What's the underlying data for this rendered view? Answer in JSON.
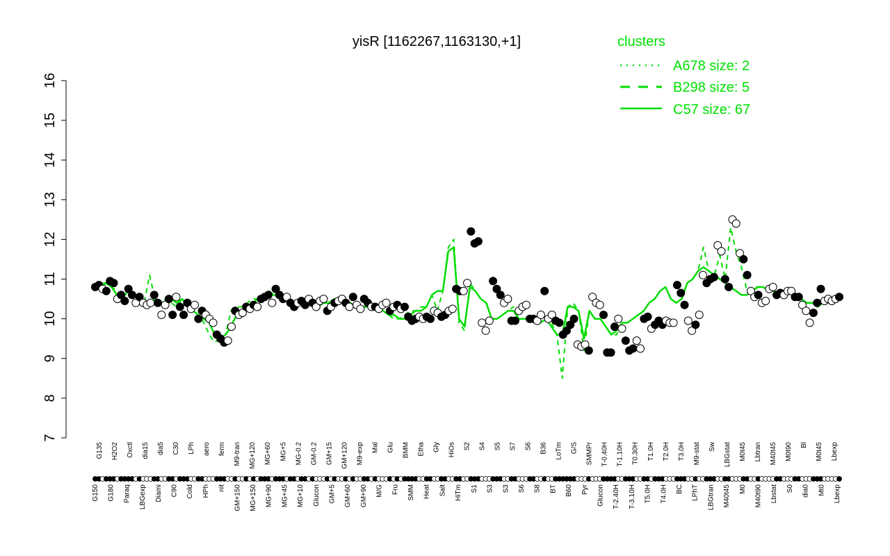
{
  "chart_data": {
    "type": "line",
    "title": "yisR [1162267,1163130,+1]",
    "xlabel": "",
    "ylabel": "",
    "ylim": [
      7,
      16
    ],
    "yticks": [
      7,
      8,
      9,
      10,
      11,
      12,
      13,
      14,
      15,
      16
    ],
    "grid": false,
    "legend": {
      "title": "clusters",
      "placement": "top-right",
      "color": "#00dd00",
      "entries": [
        {
          "label": "A678 size: 2",
          "style": "dotted"
        },
        {
          "label": "B298 size: 5",
          "style": "dashed"
        },
        {
          "label": "C57 size: 67",
          "style": "solid"
        }
      ]
    },
    "x_labels_row1": [
      "G135",
      "H2O2",
      "Oxctl",
      "dia15",
      "dia5",
      "C30",
      "LPh",
      "aero",
      "ferm",
      "M9-tran",
      "MG+120",
      "MG+60",
      "MG+5",
      "MG-0.2",
      "GM-0.2",
      "GM+15",
      "GM+120",
      "M9-exp",
      "Mal",
      "Glu",
      "BMM",
      "Etha",
      "Gly",
      "HiOs",
      "S2",
      "S4",
      "S5",
      "S7",
      "S6",
      "B36",
      "LoTm",
      "G/S",
      "SMMPr",
      "T-0.40H",
      "T-1.10H",
      "T0.30H",
      "T1.0H",
      "T2.0H",
      "T3.0H",
      "M9-stat",
      "Sw",
      "LBGstat",
      "M0t45",
      "Lbtran",
      "M40t45",
      "M0t90",
      "Bl",
      "M0t45",
      "Lbexp"
    ],
    "x_labels_row2": [
      "G150",
      "G180",
      "Paraq",
      "LBGexp",
      "Diami",
      "C90",
      "Cold",
      "HPh",
      "nit",
      "GM+150",
      "MG+150",
      "MG+90",
      "MG+45",
      "MG+10",
      "Glucon",
      "GM+5",
      "GM+60",
      "GM+90",
      "M/G",
      "Fru",
      "SMM",
      "Heat",
      "Salt",
      "HiTm",
      "S1",
      "S3",
      "S3",
      "S6",
      "S8",
      "BT",
      "B60",
      "Pyr",
      "Glucon",
      "T-2.40H",
      "T-3.10H",
      "T5.0H",
      "T4.0H",
      "BC",
      "LPhT",
      "LBGtran",
      "M40t45",
      "M0",
      "M40t90",
      "Lbstat",
      "S0",
      "dia0",
      "Mt0",
      "Lbexp"
    ],
    "series": [
      {
        "values": [
          10.8,
          10.8,
          10.9,
          10.8,
          10.6,
          10.5,
          10.7,
          10.6,
          10.5,
          10.4,
          10.4,
          10.5,
          10.4,
          10.3,
          10.5,
          10.4,
          10.5,
          10.3,
          10.2,
          10.1,
          10.0,
          9.9,
          9.6,
          9.5,
          9.6,
          9.8,
          10.1,
          10.2,
          10.3,
          10.4,
          10.5,
          10.5,
          10.6,
          10.6,
          10.5,
          10.5,
          10.4,
          10.4,
          10.4,
          10.4,
          10.4,
          10.3,
          10.4,
          10.4,
          10.5,
          10.4,
          10.4,
          10.4,
          10.3,
          10.3,
          10.3,
          10.3,
          10.3,
          10.2,
          10.1,
          10.1,
          10.0,
          10.0,
          10.1,
          10.2,
          10.2,
          10.3,
          10.6,
          10.7,
          10.7,
          11.7,
          11.8,
          10.0,
          9.8,
          10.8,
          10.7,
          10.5,
          10.4,
          10.0,
          10.0,
          10.1,
          10.2,
          10.2,
          10.0,
          10.0,
          10.0,
          10.0,
          9.9,
          10.0,
          9.8,
          9.6,
          9.6,
          10.3,
          10.3,
          10.2,
          9.5,
          10.2,
          10.0,
          10.0,
          9.8,
          9.6,
          9.7,
          9.9,
          9.9,
          10.0,
          10.1,
          10.2,
          10.4,
          10.5,
          10.7,
          10.8,
          10.5,
          10.4,
          10.5,
          10.9,
          11.0,
          11.2,
          11.3,
          11.2,
          11.1,
          11.0,
          10.9,
          10.8,
          10.7,
          10.6,
          10.6,
          10.7,
          10.8,
          10.8,
          10.7,
          10.7,
          10.6,
          10.7,
          10.7,
          10.6,
          10.5,
          10.4,
          10.4,
          10.3,
          10.4,
          10.4,
          10.5,
          10.5
        ]
      },
      {
        "style": "dashed",
        "values": [
          10.8,
          10.9,
          10.9,
          10.8,
          10.7,
          10.5,
          10.8,
          10.6,
          10.5,
          10.4,
          11.1,
          10.5,
          10.4,
          10.5,
          10.4,
          10.3,
          10.5,
          10.3,
          10.2,
          10.1,
          9.9,
          9.6,
          9.4,
          9.5,
          9.6,
          10.2,
          10.3,
          10.3,
          10.4,
          10.5,
          10.5,
          10.6,
          10.7,
          10.6,
          10.5,
          10.5,
          10.4,
          10.4,
          10.5,
          10.4,
          10.4,
          10.3,
          10.4,
          10.4,
          10.5,
          10.4,
          10.4,
          10.4,
          10.3,
          10.3,
          10.3,
          10.3,
          10.3,
          10.2,
          10.1,
          10.0,
          10.0,
          10.1,
          10.2,
          10.2,
          10.3,
          10.3,
          10.6,
          10.2,
          10.7,
          11.8,
          12.0,
          9.9,
          9.7,
          10.9,
          10.7,
          10.5,
          10.4,
          10.0,
          10.0,
          10.1,
          10.2,
          10.3,
          10.0,
          10.0,
          10.0,
          10.0,
          9.9,
          10.0,
          9.9,
          9.6,
          8.5,
          10.3,
          10.4,
          10.2,
          9.2,
          10.2,
          10.0,
          10.0,
          9.8,
          9.6,
          9.6,
          9.9,
          9.9,
          10.0,
          10.1,
          10.2,
          10.4,
          10.5,
          10.7,
          10.8,
          10.5,
          10.4,
          10.5,
          10.9,
          11.0,
          11.2,
          11.8,
          11.2,
          11.1,
          11.6,
          11.0,
          12.3,
          11.7,
          11.3,
          10.7,
          10.8,
          10.8,
          10.8,
          10.7,
          10.7,
          10.6,
          10.7,
          10.7,
          10.6,
          10.5,
          10.4,
          10.4,
          10.3,
          10.4,
          10.4,
          10.5,
          10.5
        ]
      },
      {
        "style": "dotted",
        "values": [
          10.8,
          10.8,
          10.9,
          10.8,
          10.6,
          10.5,
          10.7,
          10.6,
          10.5,
          10.4,
          10.4,
          10.5,
          10.4,
          10.3,
          10.5,
          10.4,
          10.5,
          10.3,
          10.2,
          10.1,
          10.0,
          9.9,
          9.6,
          9.5,
          9.6,
          9.8,
          10.1,
          10.2,
          10.3,
          10.4,
          10.5,
          10.5,
          10.6,
          10.6,
          10.5,
          10.5,
          10.4,
          10.4,
          10.4,
          10.4,
          10.4,
          10.3,
          10.4,
          10.4,
          10.5,
          10.4,
          10.4,
          10.4,
          10.3,
          10.3,
          10.3,
          10.3,
          10.3,
          10.2,
          10.1,
          10.1,
          10.0,
          10.0,
          10.1,
          10.2,
          10.2,
          10.3,
          10.6,
          10.7,
          10.7,
          11.7,
          11.8,
          10.0,
          9.8,
          10.8,
          10.7,
          10.5,
          10.4,
          10.0,
          10.0,
          10.1,
          10.2,
          10.2,
          10.0,
          10.0,
          10.0,
          10.0,
          9.9,
          10.0,
          9.8,
          9.6,
          9.6,
          10.3,
          10.3,
          10.2,
          9.5,
          10.2,
          10.0,
          10.0,
          9.8,
          9.6,
          9.7,
          9.9,
          9.9,
          10.0,
          10.1,
          10.2,
          10.4,
          10.5,
          10.7,
          10.8,
          10.5,
          10.4,
          10.5,
          10.9,
          11.0,
          11.2,
          11.3,
          11.2,
          11.1,
          11.0,
          10.9,
          10.8,
          10.7,
          10.6,
          10.6,
          10.7,
          10.8,
          10.8,
          10.7,
          10.7,
          10.6,
          10.7,
          10.7,
          10.6,
          10.5,
          10.4,
          10.4,
          10.3,
          10.4,
          10.4,
          10.5,
          10.5
        ]
      }
    ],
    "points": [
      {
        "y": 10.8,
        "f": 1
      },
      {
        "y": 10.85,
        "f": 1
      },
      {
        "y": 10.75,
        "f": 0
      },
      {
        "y": 10.7,
        "f": 1
      },
      {
        "y": 10.95,
        "f": 1
      },
      {
        "y": 10.9,
        "f": 1
      },
      {
        "y": 10.5,
        "f": 0
      },
      {
        "y": 10.6,
        "f": 1
      },
      {
        "y": 10.45,
        "f": 1
      },
      {
        "y": 10.75,
        "f": 1
      },
      {
        "y": 10.6,
        "f": 1
      },
      {
        "y": 10.4,
        "f": 0
      },
      {
        "y": 10.55,
        "f": 1
      },
      {
        "y": 10.4,
        "f": 0
      },
      {
        "y": 10.35,
        "f": 0
      },
      {
        "y": 10.4,
        "f": 0
      },
      {
        "y": 10.6,
        "f": 1
      },
      {
        "y": 10.4,
        "f": 1
      },
      {
        "y": 10.1,
        "f": 0
      },
      {
        "y": 10.35,
        "f": 0
      },
      {
        "y": 10.5,
        "f": 1
      },
      {
        "y": 10.1,
        "f": 1
      },
      {
        "y": 10.55,
        "f": 0
      },
      {
        "y": 10.3,
        "f": 1
      },
      {
        "y": 10.1,
        "f": 1
      },
      {
        "y": 10.4,
        "f": 1
      },
      {
        "y": 10.25,
        "f": 0
      },
      {
        "y": 10.35,
        "f": 0
      },
      {
        "y": 10.0,
        "f": 1
      },
      {
        "y": 10.2,
        "f": 1
      },
      {
        "y": 10.1,
        "f": 0
      },
      {
        "y": 10.0,
        "f": 0
      },
      {
        "y": 9.9,
        "f": 0
      },
      {
        "y": 9.6,
        "f": 1
      },
      {
        "y": 9.5,
        "f": 1
      },
      {
        "y": 9.4,
        "f": 1
      },
      {
        "y": 9.45,
        "f": 0
      },
      {
        "y": 9.8,
        "f": 0
      },
      {
        "y": 10.2,
        "f": 1
      },
      {
        "y": 10.1,
        "f": 0
      },
      {
        "y": 10.15,
        "f": 0
      },
      {
        "y": 10.3,
        "f": 1
      },
      {
        "y": 10.25,
        "f": 0
      },
      {
        "y": 10.35,
        "f": 1
      },
      {
        "y": 10.3,
        "f": 0
      },
      {
        "y": 10.5,
        "f": 1
      },
      {
        "y": 10.55,
        "f": 1
      },
      {
        "y": 10.6,
        "f": 1
      },
      {
        "y": 10.4,
        "f": 0
      },
      {
        "y": 10.75,
        "f": 1
      },
      {
        "y": 10.6,
        "f": 1
      },
      {
        "y": 10.5,
        "f": 1
      },
      {
        "y": 10.55,
        "f": 0
      },
      {
        "y": 10.4,
        "f": 1
      },
      {
        "y": 10.3,
        "f": 1
      },
      {
        "y": 10.4,
        "f": 0
      },
      {
        "y": 10.45,
        "f": 1
      },
      {
        "y": 10.35,
        "f": 1
      },
      {
        "y": 10.5,
        "f": 0
      },
      {
        "y": 10.4,
        "f": 1
      },
      {
        "y": 10.3,
        "f": 0
      },
      {
        "y": 10.45,
        "f": 0
      },
      {
        "y": 10.5,
        "f": 0
      },
      {
        "y": 10.2,
        "f": 1
      },
      {
        "y": 10.3,
        "f": 0
      },
      {
        "y": 10.4,
        "f": 1
      },
      {
        "y": 10.45,
        "f": 0
      },
      {
        "y": 10.5,
        "f": 0
      },
      {
        "y": 10.4,
        "f": 1
      },
      {
        "y": 10.3,
        "f": 0
      },
      {
        "y": 10.55,
        "f": 1
      },
      {
        "y": 10.35,
        "f": 0
      },
      {
        "y": 10.25,
        "f": 0
      },
      {
        "y": 10.5,
        "f": 1
      },
      {
        "y": 10.4,
        "f": 1
      },
      {
        "y": 10.3,
        "f": 0
      },
      {
        "y": 10.3,
        "f": 1
      },
      {
        "y": 10.25,
        "f": 0
      },
      {
        "y": 10.35,
        "f": 0
      },
      {
        "y": 10.4,
        "f": 0
      },
      {
        "y": 10.2,
        "f": 1
      },
      {
        "y": 10.3,
        "f": 0
      },
      {
        "y": 10.35,
        "f": 1
      },
      {
        "y": 10.25,
        "f": 0
      },
      {
        "y": 10.3,
        "f": 1
      },
      {
        "y": 10.05,
        "f": 1
      },
      {
        "y": 9.95,
        "f": 1
      },
      {
        "y": 10.0,
        "f": 1
      },
      {
        "y": 10.05,
        "f": 0
      },
      {
        "y": 10.0,
        "f": 0
      },
      {
        "y": 10.05,
        "f": 1
      },
      {
        "y": 10.0,
        "f": 1
      },
      {
        "y": 10.2,
        "f": 0
      },
      {
        "y": 10.15,
        "f": 0
      },
      {
        "y": 10.05,
        "f": 1
      },
      {
        "y": 10.1,
        "f": 1
      },
      {
        "y": 10.2,
        "f": 0
      },
      {
        "y": 10.25,
        "f": 0
      },
      {
        "y": 10.75,
        "f": 1
      },
      {
        "y": 10.7,
        "f": 1
      },
      {
        "y": 10.7,
        "f": 0
      },
      {
        "y": 10.9,
        "f": 0
      },
      {
        "y": 12.2,
        "f": 1
      },
      {
        "y": 11.9,
        "f": 1
      },
      {
        "y": 11.95,
        "f": 1
      },
      {
        "y": 9.9,
        "f": 0
      },
      {
        "y": 9.7,
        "f": 0
      },
      {
        "y": 9.95,
        "f": 0
      },
      {
        "y": 10.95,
        "f": 1
      },
      {
        "y": 10.75,
        "f": 1
      },
      {
        "y": 10.6,
        "f": 1
      },
      {
        "y": 10.4,
        "f": 0
      },
      {
        "y": 10.5,
        "f": 0
      },
      {
        "y": 9.95,
        "f": 1
      },
      {
        "y": 9.95,
        "f": 1
      },
      {
        "y": 10.2,
        "f": 0
      },
      {
        "y": 10.3,
        "f": 0
      },
      {
        "y": 10.35,
        "f": 0
      },
      {
        "y": 10.0,
        "f": 1
      },
      {
        "y": 10.0,
        "f": 1
      },
      {
        "y": 9.95,
        "f": 0
      },
      {
        "y": 10.1,
        "f": 0
      },
      {
        "y": 10.7,
        "f": 1
      },
      {
        "y": 10.0,
        "f": 0
      },
      {
        "y": 10.1,
        "f": 0
      },
      {
        "y": 9.95,
        "f": 1
      },
      {
        "y": 9.9,
        "f": 1
      },
      {
        "y": 9.6,
        "f": 1
      },
      {
        "y": 9.7,
        "f": 1
      },
      {
        "y": 9.85,
        "f": 1
      },
      {
        "y": 10.0,
        "f": 1
      },
      {
        "y": 9.35,
        "f": 0
      },
      {
        "y": 9.3,
        "f": 0
      },
      {
        "y": 9.35,
        "f": 0
      },
      {
        "y": 9.2,
        "f": 1
      },
      {
        "y": 10.55,
        "f": 0
      },
      {
        "y": 10.4,
        "f": 0
      },
      {
        "y": 10.35,
        "f": 0
      },
      {
        "y": 10.1,
        "f": 1
      },
      {
        "y": 9.15,
        "f": 1
      },
      {
        "y": 9.15,
        "f": 1
      },
      {
        "y": 9.8,
        "f": 1
      },
      {
        "y": 10.0,
        "f": 0
      },
      {
        "y": 9.75,
        "f": 0
      },
      {
        "y": 9.45,
        "f": 1
      },
      {
        "y": 9.2,
        "f": 1
      },
      {
        "y": 9.25,
        "f": 1
      },
      {
        "y": 9.45,
        "f": 0
      },
      {
        "y": 9.25,
        "f": 0
      },
      {
        "y": 10.0,
        "f": 1
      },
      {
        "y": 10.05,
        "f": 1
      },
      {
        "y": 9.75,
        "f": 0
      },
      {
        "y": 9.85,
        "f": 1
      },
      {
        "y": 9.95,
        "f": 1
      },
      {
        "y": 9.85,
        "f": 1
      },
      {
        "y": 9.95,
        "f": 0
      },
      {
        "y": 9.9,
        "f": 0
      },
      {
        "y": 9.9,
        "f": 0
      },
      {
        "y": 10.85,
        "f": 1
      },
      {
        "y": 10.65,
        "f": 1
      },
      {
        "y": 10.35,
        "f": 1
      },
      {
        "y": 9.95,
        "f": 0
      },
      {
        "y": 9.7,
        "f": 0
      },
      {
        "y": 9.85,
        "f": 1
      },
      {
        "y": 10.1,
        "f": 0
      },
      {
        "y": 11.1,
        "f": 0
      },
      {
        "y": 10.9,
        "f": 1
      },
      {
        "y": 11.0,
        "f": 1
      },
      {
        "y": 11.05,
        "f": 1
      },
      {
        "y": 11.85,
        "f": 0
      },
      {
        "y": 11.7,
        "f": 0
      },
      {
        "y": 11.0,
        "f": 1
      },
      {
        "y": 10.8,
        "f": 1
      },
      {
        "y": 12.5,
        "f": 0
      },
      {
        "y": 12.4,
        "f": 0
      },
      {
        "y": 11.65,
        "f": 0
      },
      {
        "y": 11.5,
        "f": 1
      },
      {
        "y": 11.1,
        "f": 1
      },
      {
        "y": 10.7,
        "f": 0
      },
      {
        "y": 10.55,
        "f": 0
      },
      {
        "y": 10.6,
        "f": 1
      },
      {
        "y": 10.4,
        "f": 0
      },
      {
        "y": 10.45,
        "f": 0
      },
      {
        "y": 10.75,
        "f": 0
      },
      {
        "y": 10.8,
        "f": 0
      },
      {
        "y": 10.6,
        "f": 1
      },
      {
        "y": 10.65,
        "f": 1
      },
      {
        "y": 10.6,
        "f": 0
      },
      {
        "y": 10.7,
        "f": 0
      },
      {
        "y": 10.7,
        "f": 0
      },
      {
        "y": 10.55,
        "f": 1
      },
      {
        "y": 10.55,
        "f": 1
      },
      {
        "y": 10.35,
        "f": 0
      },
      {
        "y": 10.2,
        "f": 0
      },
      {
        "y": 9.9,
        "f": 0
      },
      {
        "y": 10.15,
        "f": 1
      },
      {
        "y": 10.4,
        "f": 1
      },
      {
        "y": 10.75,
        "f": 1
      },
      {
        "y": 10.45,
        "f": 0
      },
      {
        "y": 10.5,
        "f": 0
      },
      {
        "y": 10.45,
        "f": 0
      },
      {
        "y": 10.5,
        "f": 0
      },
      {
        "y": 10.55,
        "f": 1
      }
    ]
  }
}
